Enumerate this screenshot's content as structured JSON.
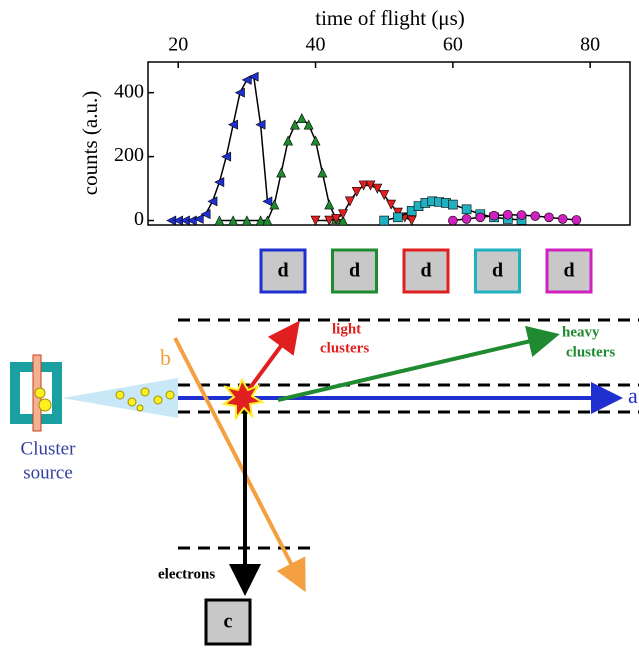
{
  "chart_data": {
    "type": "line",
    "x_label": "time of flight (μs)",
    "y_label": "counts (a.u.)",
    "xlim": [
      15.6,
      85.8
    ],
    "ylim": [
      -14,
      496
    ],
    "xticks": [
      20,
      40,
      60,
      80
    ],
    "yticks": [
      0,
      200,
      400
    ],
    "series": [
      {
        "color": "#1f2fd0",
        "marker": "triangle-left",
        "x": [
          19,
          20,
          21,
          22,
          23,
          24,
          25,
          26,
          27,
          28,
          29,
          30,
          31,
          32,
          33
        ],
        "values": [
          0,
          0,
          0,
          0,
          5,
          20,
          60,
          120,
          200,
          300,
          400,
          440,
          450,
          300,
          60
        ]
      },
      {
        "color": "#1f8a2f",
        "marker": "triangle-up",
        "x": [
          26,
          28,
          30,
          32,
          33,
          34,
          35,
          36,
          37,
          38,
          39,
          40,
          41,
          42,
          43,
          44
        ],
        "values": [
          0,
          0,
          0,
          0,
          0,
          50,
          150,
          250,
          300,
          320,
          300,
          250,
          150,
          50,
          5,
          0
        ]
      },
      {
        "color": "#e02020",
        "marker": "triangle-down",
        "x": [
          40,
          42,
          43,
          44,
          45,
          46,
          47,
          48,
          49,
          50,
          51,
          52,
          53,
          54
        ],
        "values": [
          0,
          0,
          5,
          20,
          60,
          90,
          110,
          110,
          100,
          80,
          50,
          25,
          10,
          0
        ]
      },
      {
        "color": "#20b0c0",
        "marker": "square",
        "x": [
          50,
          52,
          54,
          55,
          56,
          57,
          58,
          59,
          60,
          62,
          64,
          66,
          68,
          70
        ],
        "values": [
          0,
          10,
          30,
          45,
          55,
          60,
          58,
          55,
          50,
          35,
          20,
          10,
          5,
          2
        ]
      },
      {
        "color": "#d020c0",
        "marker": "circle",
        "x": [
          60,
          62,
          64,
          66,
          68,
          70,
          72,
          74,
          76,
          78
        ],
        "values": [
          0,
          5,
          10,
          15,
          18,
          17,
          14,
          10,
          5,
          2
        ]
      }
    ]
  },
  "diagram": {
    "detectors": [
      "d",
      "d",
      "d",
      "d",
      "d"
    ],
    "light_label": [
      "light",
      "clusters"
    ],
    "heavy_label": [
      "heavy",
      "clusters"
    ],
    "beam_a": "a",
    "beam_b": "b",
    "source_label": [
      "Cluster",
      "source"
    ],
    "electrons": "electrons",
    "detector_c": "c"
  }
}
